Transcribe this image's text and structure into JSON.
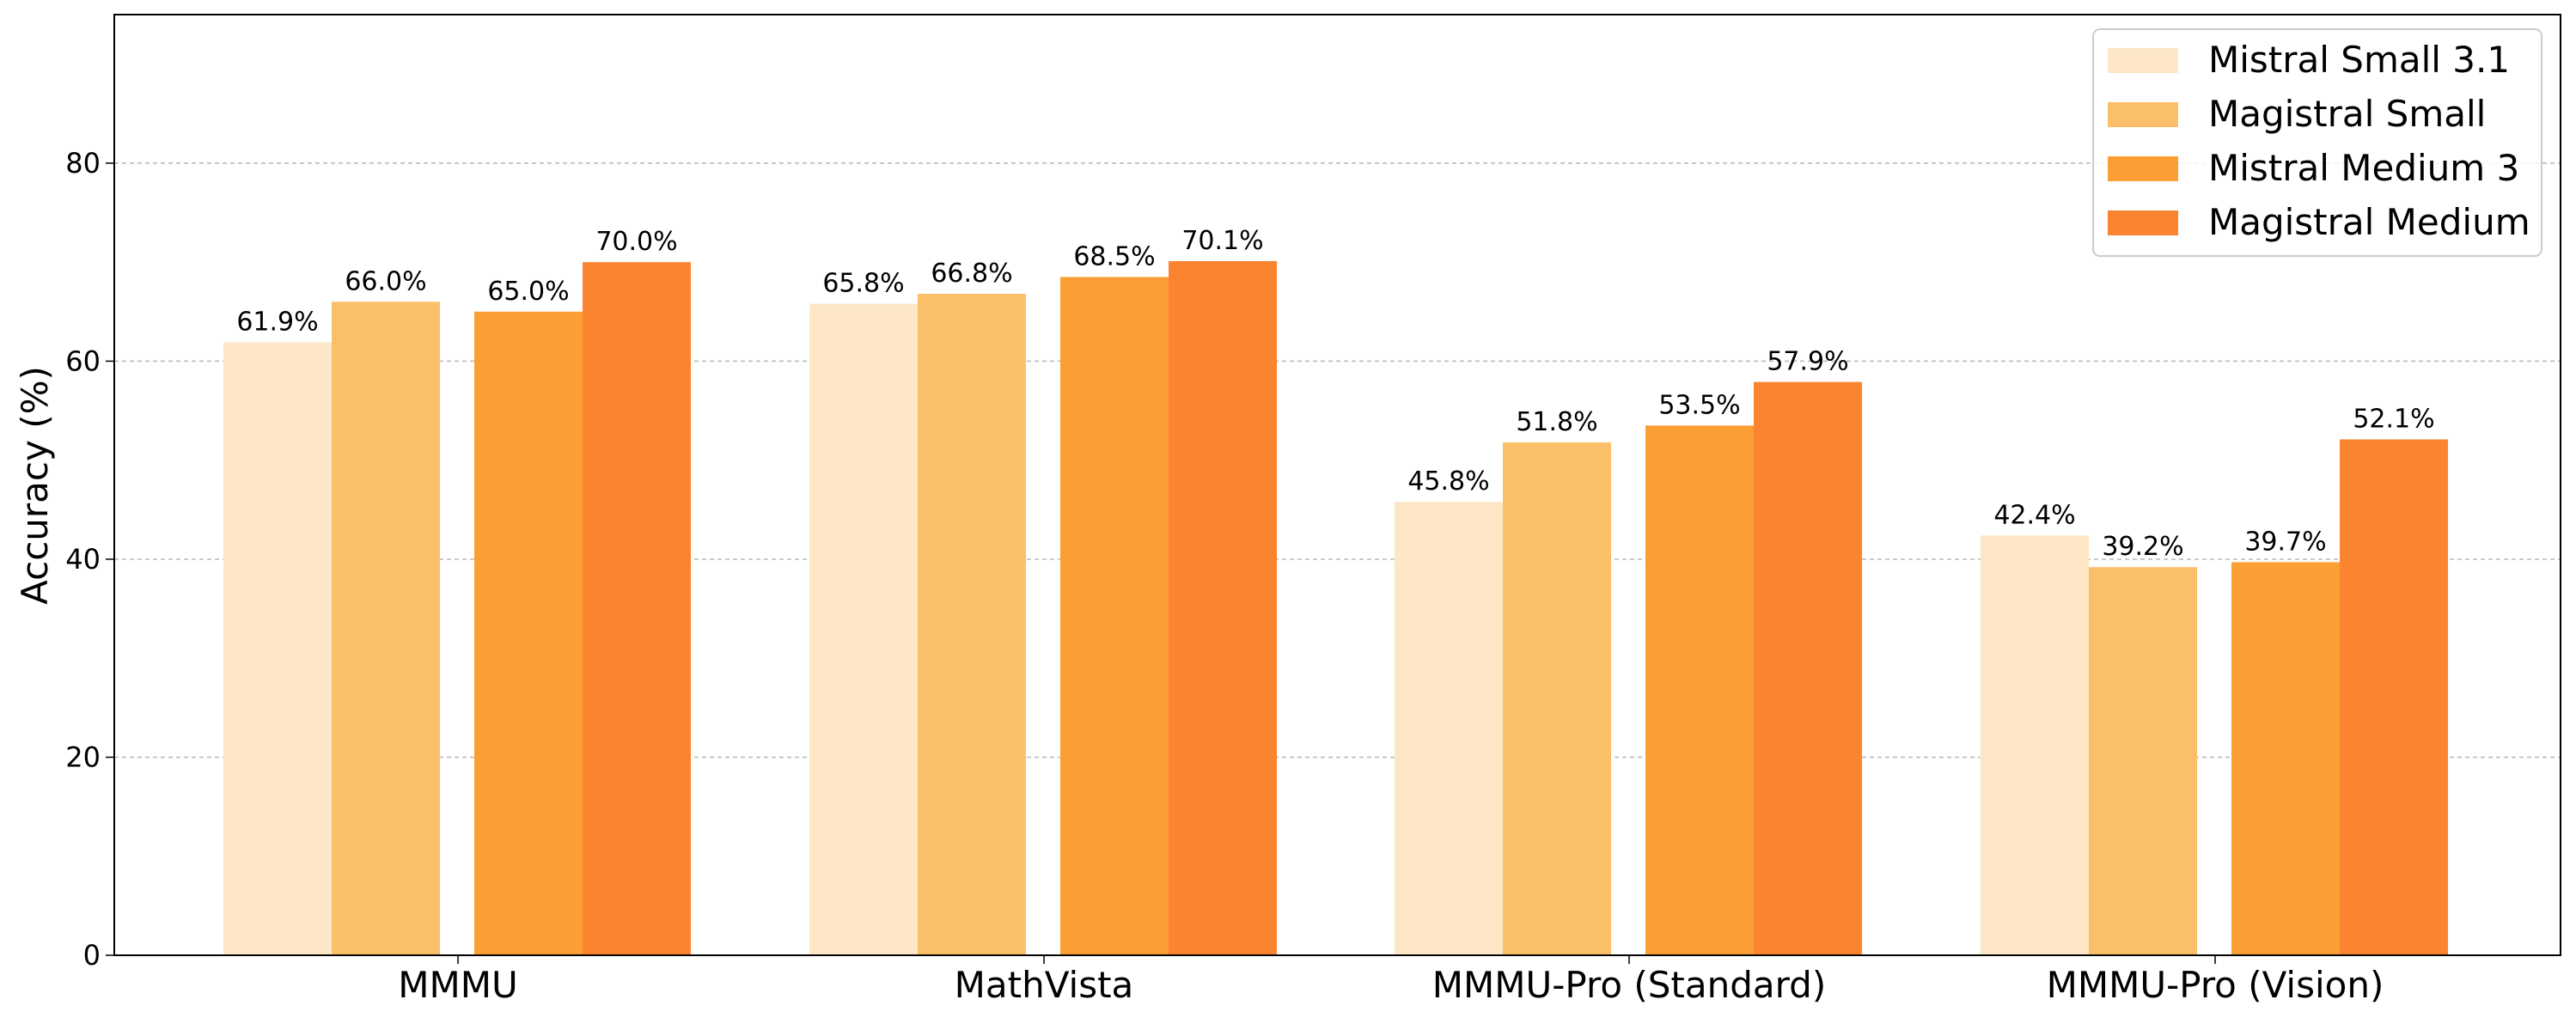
{
  "chart_data": {
    "type": "bar",
    "title": "",
    "xlabel": "",
    "ylabel": "Accuracy (%)",
    "ylim": [
      0,
      95
    ],
    "yticks": [
      0,
      20,
      40,
      60,
      80
    ],
    "grid": "y, dashed",
    "legend_position": "top-right",
    "categories": [
      "MMMU",
      "MathVista",
      "MMMU-Pro (Standard)",
      "MMMU-Pro (Vision)"
    ],
    "series": [
      {
        "name": "Mistral Small 3.1",
        "color": "#fde7c6",
        "values": [
          61.9,
          65.8,
          45.8,
          42.4
        ],
        "labels": [
          "61.9%",
          "65.8%",
          "45.8%",
          "42.4%"
        ]
      },
      {
        "name": "Magistral Small",
        "color": "#fcbf69",
        "values": [
          66.0,
          66.8,
          51.8,
          39.2
        ],
        "labels": [
          "66.0%",
          "66.8%",
          "51.8%",
          "39.2%"
        ]
      },
      {
        "name": "Mistral Medium 3",
        "color": "#fb9f34",
        "values": [
          65.0,
          68.5,
          53.5,
          39.7
        ],
        "labels": [
          "65.0%",
          "68.5%",
          "53.5%",
          "39.7%"
        ]
      },
      {
        "name": "Magistral Medium",
        "color": "#fb8431",
        "values": [
          70.0,
          70.1,
          57.9,
          52.1
        ],
        "labels": [
          "70.0%",
          "70.1%",
          "57.9%",
          "52.1%"
        ]
      }
    ]
  }
}
